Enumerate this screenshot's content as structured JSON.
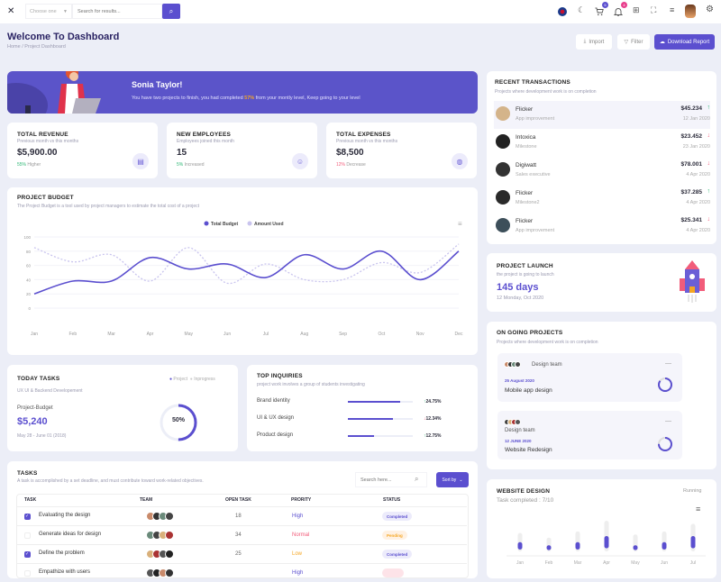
{
  "topbar": {
    "select": "Choose one",
    "search_placeholder": "Search for results...",
    "cart_count": "5",
    "notif_count": "4"
  },
  "header": {
    "title": "Welcome To Dashboard",
    "breadcrumb": [
      "Home",
      "Project Dashboard"
    ],
    "import": "Import",
    "filter": "Filter",
    "download": "Download Report"
  },
  "banner": {
    "name": "Sonia Taylor!",
    "text_before": "You have two projects to finish, you had completed ",
    "highlight": "57%",
    "text_after": " from your montly level, Keep going to your level"
  },
  "stats": [
    {
      "title": "TOTAL REVENUE",
      "sub": "Previous month vs this months",
      "value": "$5,900.00",
      "change": "55%",
      "change_label": " Higher",
      "change_color": "#2bb673"
    },
    {
      "title": "NEW EMPLOYEES",
      "sub": "Employees joined this month",
      "value": "15",
      "change": "5%",
      "change_label": " Increased",
      "change_color": "#2bb673"
    },
    {
      "title": "TOTAL EXPENSES",
      "sub": "Previous month vs this months",
      "value": "$8,500",
      "change": "12%",
      "change_label": " Decrease",
      "change_color": "#f25c7a"
    }
  ],
  "budget": {
    "title": "PROJECT BUDGET",
    "sub": "The Project Budget is a tool used by project managers to estimate the total cost of a project"
  },
  "chart_data": [
    {
      "type": "line",
      "categories": [
        "Jan",
        "Feb",
        "Mar",
        "Apr",
        "May",
        "Jun",
        "Jul",
        "Aug",
        "Sep",
        "Oct",
        "Nov",
        "Dec"
      ],
      "ylim": [
        0,
        100
      ],
      "yticks": [
        "0",
        "20",
        "40",
        "60",
        "80",
        "100"
      ],
      "legend": "top-center",
      "grid": true,
      "series": [
        {
          "name": "Total Budget",
          "color": "#5b4fcf",
          "dashed": false,
          "values": [
            20,
            38,
            38,
            71,
            55,
            62,
            43,
            75,
            55,
            80,
            40,
            80
          ]
        },
        {
          "name": "Amount Used",
          "color": "#c9c4ee",
          "dashed": true,
          "values": [
            85,
            65,
            75,
            38,
            85,
            35,
            62,
            40,
            40,
            64,
            50,
            90
          ]
        }
      ]
    },
    {
      "type": "bar",
      "categories": [
        "Jan",
        "Feb",
        "Mar",
        "Apr",
        "May",
        "Jun",
        "Jul"
      ],
      "series": [
        {
          "values": [
            30,
            20,
            30,
            50,
            20,
            30,
            50
          ],
          "color": "#5b4fcf"
        },
        {
          "values": [
            60,
            45,
            65,
            100,
            55,
            65,
            90
          ],
          "color": "#eeeeee"
        }
      ]
    }
  ],
  "today": {
    "title": "TODAY TASKS",
    "sub": "UX UI & Backend Developement",
    "legend": [
      "Project",
      "Inprogress"
    ],
    "label": "Project-Budget",
    "value": "$5,240",
    "dates": "May 28 - June 01 (2018)",
    "percent": "50%",
    "progress": 50
  },
  "inquiries": {
    "title": "TOP INQUIRIES",
    "sub": "project work involves a group of students investigating",
    "items": [
      {
        "label": "Brand identity",
        "fill": 80,
        "change": "24.75%",
        "dir": "up"
      },
      {
        "label": "UI & UX design",
        "fill": 70,
        "change": "12.34%",
        "dir": "down"
      },
      {
        "label": "Product design",
        "fill": 40,
        "change": "12.75%",
        "dir": "up"
      }
    ]
  },
  "tasks": {
    "title": "TASKS",
    "sub": "A task is accomplished by a set deadline, and must contribute toward work-related objectives.",
    "search_placeholder": "Search here...",
    "sort": "Sort by",
    "columns": [
      "TASK",
      "TEAM",
      "OPEN TASK",
      "PRORITY",
      "STATUS"
    ],
    "rows": [
      {
        "checked": true,
        "task": "Evaluating the design",
        "open": "18",
        "priority": "High",
        "pcolor": "#5b4fcf",
        "status": "Completed",
        "sbg": "#ecebfb",
        "scolor": "#5b4fcf"
      },
      {
        "checked": false,
        "task": "Generate ideas for design",
        "open": "34",
        "priority": "Normal",
        "pcolor": "#f25c7a",
        "status": "Pending",
        "sbg": "#fff1e2",
        "scolor": "#f5a623"
      },
      {
        "checked": true,
        "task": "Define the problem",
        "open": "25",
        "priority": "Low",
        "pcolor": "#f5a623",
        "status": "Completed",
        "sbg": "#ecebfb",
        "scolor": "#5b4fcf"
      },
      {
        "checked": false,
        "task": "Empathize with users",
        "open": "",
        "priority": "High",
        "pcolor": "#5b4fcf",
        "status": "",
        "sbg": "#fde3e8",
        "scolor": "#f25c7a"
      }
    ]
  },
  "transactions": {
    "title": "RECENT TRANSACTIONS",
    "sub": "Projects where development work is on completion",
    "items": [
      {
        "name": "Flicker",
        "desc": "App improvement",
        "amount": "$45.234",
        "date": "12 Jan 2020",
        "dir": "up"
      },
      {
        "name": "Intoxica",
        "desc": "Milestone",
        "amount": "$23.452",
        "date": "23 Jan 2020",
        "dir": "down"
      },
      {
        "name": "Digiwatt",
        "desc": "Sales executive",
        "amount": "$78.001",
        "date": "4 Apr 2020",
        "dir": "down"
      },
      {
        "name": "Flicker",
        "desc": "Milestone2",
        "amount": "$37.285",
        "date": "4 Apr 2020",
        "dir": "up"
      },
      {
        "name": "Flicker",
        "desc": "App improvement",
        "amount": "$25.341",
        "date": "4 Apr 2020",
        "dir": "down"
      }
    ]
  },
  "launch": {
    "title": "PROJECT LAUNCH",
    "sub": "the project is going to launch",
    "days": "145 days",
    "date": "12 Monday, Oct 2020"
  },
  "ongoing": {
    "title": "ON GOING PROJECTS",
    "sub": "Projects where development work is on completion",
    "items": [
      {
        "team": "Design team",
        "date": "25 August 2020",
        "name": "Mobile app design",
        "progress": 85
      },
      {
        "team": "Design team",
        "date": "12 JUNE 2020",
        "name": "Website Redesign",
        "progress": 75
      }
    ]
  },
  "website": {
    "title": "WEBSITE DESIGN",
    "status": "Running",
    "completed": "Task completed : 7/10"
  }
}
